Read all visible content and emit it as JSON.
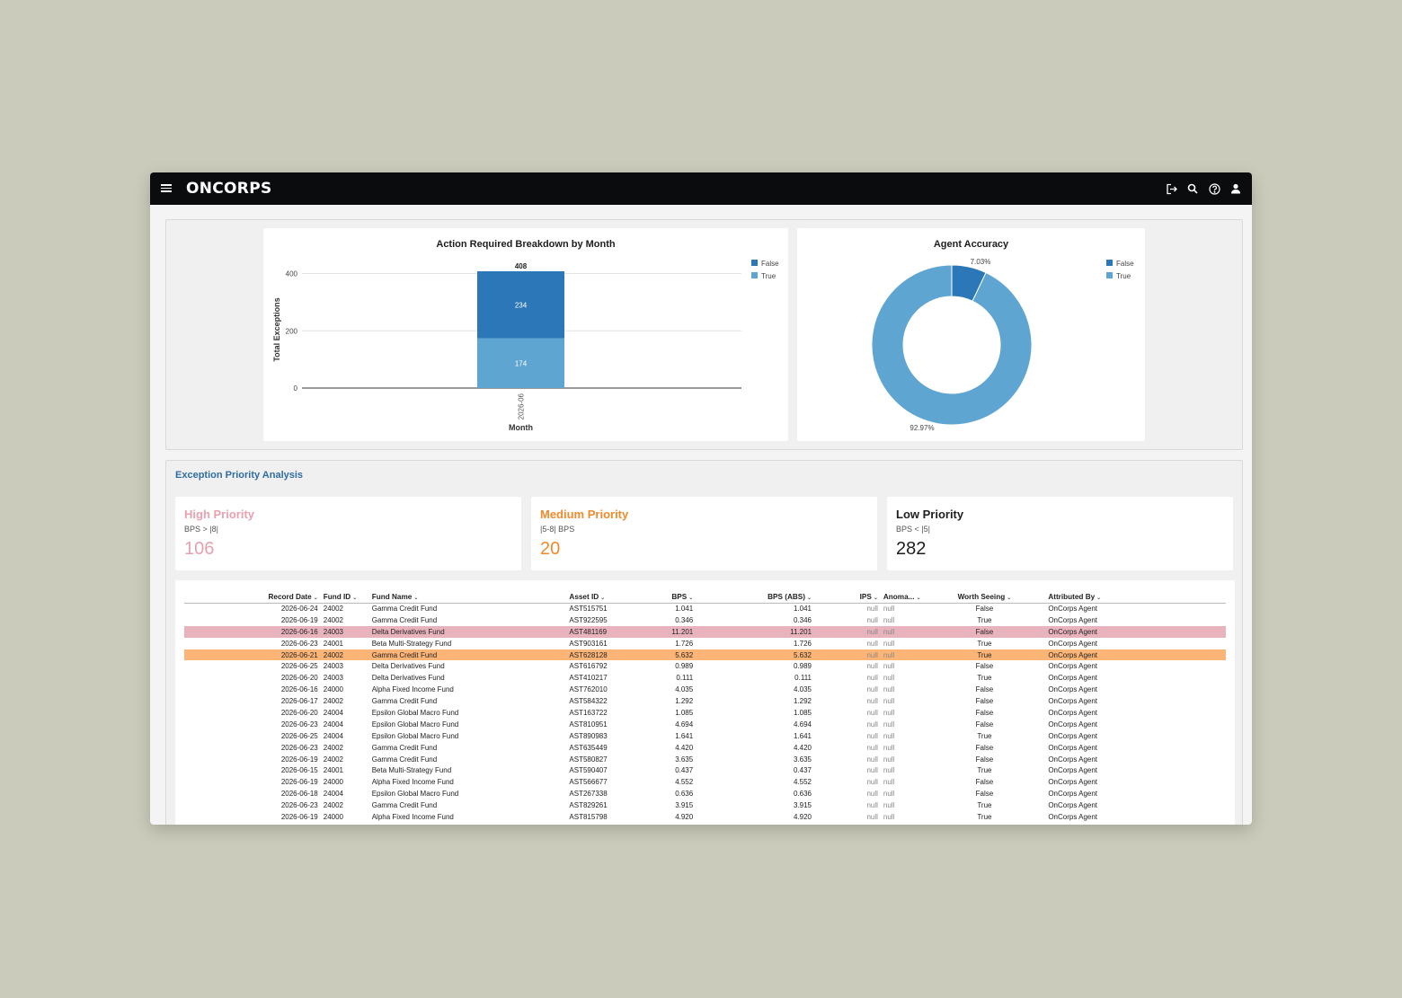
{
  "app": {
    "brand": "ONCORPS",
    "icons": [
      "menu-icon",
      "logout-icon",
      "search-icon",
      "help-icon",
      "user-icon"
    ]
  },
  "charts": {
    "bar": {
      "title": "Action Required Breakdown by Month",
      "total_label": "408",
      "legend": [
        "False",
        "True"
      ]
    },
    "donut": {
      "title": "Agent Accuracy",
      "legend": [
        "False",
        "True"
      ],
      "label_false": "7.03%",
      "label_true": "92.97%"
    }
  },
  "chart_data": [
    {
      "type": "bar",
      "title": "Action Required Breakdown by Month",
      "xlabel": "Month",
      "ylabel": "Total Exceptions",
      "categories": [
        "2026-06"
      ],
      "series": [
        {
          "name": "True",
          "values": [
            174
          ],
          "color": "#5ea5d2"
        },
        {
          "name": "False",
          "values": [
            234
          ],
          "color": "#2b77b7"
        }
      ],
      "total": [
        408
      ],
      "ylim": [
        0,
        408
      ],
      "yticks": [
        "0",
        "200",
        "400"
      ],
      "stacked": true,
      "grid": true,
      "legend_position": "top-right"
    },
    {
      "type": "pie",
      "title": "Agent Accuracy",
      "categories": [
        "False",
        "True"
      ],
      "values": [
        7.03,
        92.97
      ],
      "labels": [
        "7.03%",
        "92.97%"
      ],
      "colors": [
        "#2b77b7",
        "#5ea5d2"
      ],
      "donut": true,
      "legend_position": "top-right"
    }
  ],
  "priority": {
    "section_title": "Exception Priority Analysis",
    "high": {
      "title": "High Priority",
      "sub": "BPS > |8|",
      "value": "106",
      "color": "#e8a1ae"
    },
    "medium": {
      "title": "Medium Priority",
      "sub": "|5-8| BPS",
      "value": "20",
      "color": "#f08a2c"
    },
    "low": {
      "title": "Low Priority",
      "sub": "BPS < |5|",
      "value": "282",
      "color": "#1e1e1e"
    }
  },
  "table": {
    "headers": [
      "Record Date",
      "Fund ID",
      "Fund Name",
      "Asset ID",
      "BPS",
      "BPS (ABS)",
      "IPS",
      "Anoma...",
      "Worth Seeing",
      "Attributed By"
    ],
    "rows": [
      [
        "2026-06-24",
        "24002",
        "Gamma Credit Fund",
        "AST515751",
        "1.041",
        "1.041",
        "null",
        "null",
        "False",
        "OnCorps Agent",
        ""
      ],
      [
        "2026-06-19",
        "24002",
        "Gamma Credit Fund",
        "AST922595",
        "0.346",
        "0.346",
        "null",
        "null",
        "True",
        "OnCorps Agent",
        ""
      ],
      [
        "2026-06-16",
        "24003",
        "Delta Derivatives Fund",
        "AST481169",
        "11.201",
        "11.201",
        "null",
        "null",
        "False",
        "OnCorps Agent",
        "high"
      ],
      [
        "2026-06-23",
        "24001",
        "Beta Multi-Strategy Fund",
        "AST903161",
        "1.726",
        "1.726",
        "null",
        "null",
        "True",
        "OnCorps Agent",
        ""
      ],
      [
        "2026-06-21",
        "24002",
        "Gamma Credit Fund",
        "AST628128",
        "5.632",
        "5.632",
        "null",
        "null",
        "True",
        "OnCorps Agent",
        "med"
      ],
      [
        "2026-06-25",
        "24003",
        "Delta Derivatives Fund",
        "AST616792",
        "0.989",
        "0.989",
        "null",
        "null",
        "False",
        "OnCorps Agent",
        ""
      ],
      [
        "2026-06-20",
        "24003",
        "Delta Derivatives Fund",
        "AST410217",
        "0.111",
        "0.111",
        "null",
        "null",
        "True",
        "OnCorps Agent",
        ""
      ],
      [
        "2026-06-16",
        "24000",
        "Alpha Fixed Income Fund",
        "AST762010",
        "4.035",
        "4.035",
        "null",
        "null",
        "False",
        "OnCorps Agent",
        ""
      ],
      [
        "2026-06-17",
        "24002",
        "Gamma Credit Fund",
        "AST584322",
        "1.292",
        "1.292",
        "null",
        "null",
        "False",
        "OnCorps Agent",
        ""
      ],
      [
        "2026-06-20",
        "24004",
        "Epsilon Global Macro Fund",
        "AST163722",
        "1.085",
        "1.085",
        "null",
        "null",
        "False",
        "OnCorps Agent",
        ""
      ],
      [
        "2026-06-23",
        "24004",
        "Epsilon Global Macro Fund",
        "AST810951",
        "4.694",
        "4.694",
        "null",
        "null",
        "False",
        "OnCorps Agent",
        ""
      ],
      [
        "2026-06-25",
        "24004",
        "Epsilon Global Macro Fund",
        "AST890983",
        "1.641",
        "1.641",
        "null",
        "null",
        "True",
        "OnCorps Agent",
        ""
      ],
      [
        "2026-06-23",
        "24002",
        "Gamma Credit Fund",
        "AST635449",
        "4.420",
        "4.420",
        "null",
        "null",
        "False",
        "OnCorps Agent",
        ""
      ],
      [
        "2026-06-19",
        "24002",
        "Gamma Credit Fund",
        "AST580827",
        "3.635",
        "3.635",
        "null",
        "null",
        "False",
        "OnCorps Agent",
        ""
      ],
      [
        "2026-06-15",
        "24001",
        "Beta Multi-Strategy Fund",
        "AST590407",
        "0.437",
        "0.437",
        "null",
        "null",
        "True",
        "OnCorps Agent",
        ""
      ],
      [
        "2026-06-19",
        "24000",
        "Alpha Fixed Income Fund",
        "AST566677",
        "4.552",
        "4.552",
        "null",
        "null",
        "False",
        "OnCorps Agent",
        ""
      ],
      [
        "2026-06-18",
        "24004",
        "Epsilon Global Macro Fund",
        "AST267338",
        "0.636",
        "0.636",
        "null",
        "null",
        "False",
        "OnCorps Agent",
        ""
      ],
      [
        "2026-06-23",
        "24002",
        "Gamma Credit Fund",
        "AST829261",
        "3.915",
        "3.915",
        "null",
        "null",
        "True",
        "OnCorps Agent",
        ""
      ],
      [
        "2026-06-19",
        "24000",
        "Alpha Fixed Income Fund",
        "AST815798",
        "4.920",
        "4.920",
        "null",
        "null",
        "True",
        "OnCorps Agent",
        ""
      ]
    ]
  },
  "colors": {
    "header_bg": "#0b0c0e",
    "section_title": "#2f6da3",
    "bar_false": "#2b77b7",
    "bar_true": "#5ea5d2",
    "high_row": "#e8b3bd",
    "medium_row": "#fdb577"
  }
}
